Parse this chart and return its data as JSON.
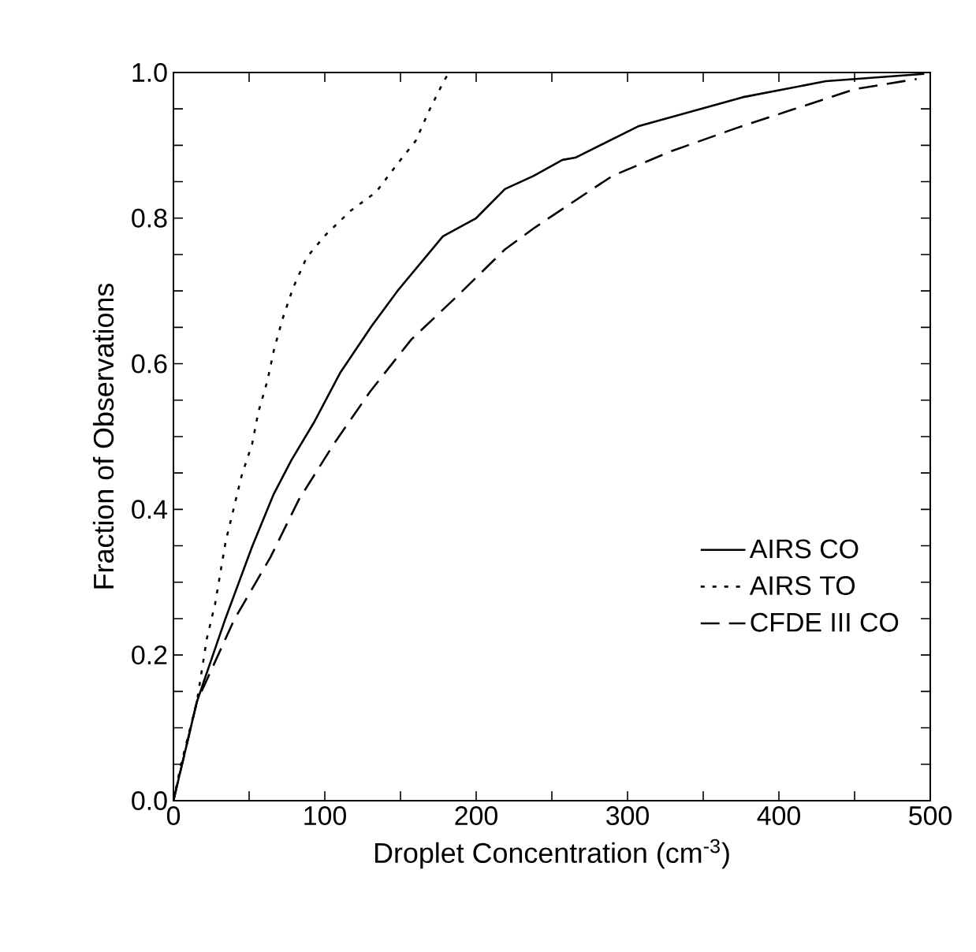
{
  "chart_data": {
    "type": "line",
    "xlabel": "Droplet Concentration (cm$^{-3}$)",
    "ylabel": "Fraction of Observations",
    "xlim": [
      0,
      500
    ],
    "ylim": [
      0,
      1.0
    ],
    "xticks": [
      0,
      {
        "value": 50,
        "label": null
      },
      100,
      {
        "value": 150,
        "label": null
      },
      200,
      {
        "value": 250,
        "label": null
      },
      300,
      {
        "value": 350,
        "label": null
      },
      400,
      {
        "value": 450,
        "label": null
      },
      500
    ],
    "yticks": [
      {
        "value": 0,
        "label": "0.0"
      },
      {
        "value": 0.05,
        "label": null
      },
      {
        "value": 0.1,
        "label": null
      },
      {
        "value": 0.15,
        "label": null
      },
      0.2,
      {
        "value": 0.25,
        "label": null
      },
      {
        "value": 0.3,
        "label": null
      },
      {
        "value": 0.35,
        "label": null
      },
      0.4,
      {
        "value": 0.45,
        "label": null
      },
      {
        "value": 0.5,
        "label": null
      },
      {
        "value": 0.55,
        "label": null
      },
      0.6,
      {
        "value": 0.65,
        "label": null
      },
      {
        "value": 0.7,
        "label": null
      },
      {
        "value": 0.75,
        "label": null
      },
      0.8,
      {
        "value": 0.85,
        "label": null
      },
      {
        "value": 0.9,
        "label": null
      },
      {
        "value": 0.95,
        "label": null
      },
      {
        "value": 1.0,
        "label": "1.0"
      }
    ],
    "grid": false,
    "legend": "bottom right",
    "marker": "none",
    "series": [
      {
        "name": "AIRS CO",
        "color": "#000000",
        "line_style": "solid",
        "x": [
          0,
          15.5,
          34,
          52,
          66,
          78,
          93,
          110,
          131,
          148,
          178,
          200,
          219,
          238,
          257,
          265.5,
          307,
          376,
          431,
          496
        ],
        "values": [
          0,
          0.136,
          0.248,
          0.349,
          0.42,
          0.468,
          0.52,
          0.587,
          0.652,
          0.7,
          0.775,
          0.8,
          0.84,
          0.858,
          0.88,
          0.883,
          0.926,
          0.966,
          0.988,
          0.998
        ]
      },
      {
        "name": "AIRS TO",
        "color": "#000000",
        "line_style": "dotted",
        "x": [
          0,
          5,
          15.5,
          22,
          27.5,
          34.5,
          40,
          45,
          52,
          56,
          62,
          66.5,
          72,
          79,
          88,
          101,
          117,
          134,
          147,
          160,
          169,
          178.6,
          182
        ],
        "values": [
          0,
          0.05,
          0.136,
          0.222,
          0.27,
          0.356,
          0.403,
          0.446,
          0.49,
          0.533,
          0.576,
          0.62,
          0.661,
          0.704,
          0.746,
          0.778,
          0.81,
          0.836,
          0.872,
          0.906,
          0.948,
          0.988,
          1.0
        ]
      },
      {
        "name": "CFDE III CO",
        "color": "#000000",
        "line_style": "dashed",
        "x": [
          0,
          15.5,
          40,
          64,
          83,
          106,
          130,
          157,
          186,
          219,
          238,
          253,
          290,
          329,
          371,
          409,
          450,
          491
        ],
        "values": [
          0,
          0.136,
          0.248,
          0.334,
          0.414,
          0.49,
          0.562,
          0.633,
          0.69,
          0.757,
          0.786,
          0.807,
          0.858,
          0.892,
          0.923,
          0.949,
          0.977,
          0.991
        ]
      }
    ]
  }
}
